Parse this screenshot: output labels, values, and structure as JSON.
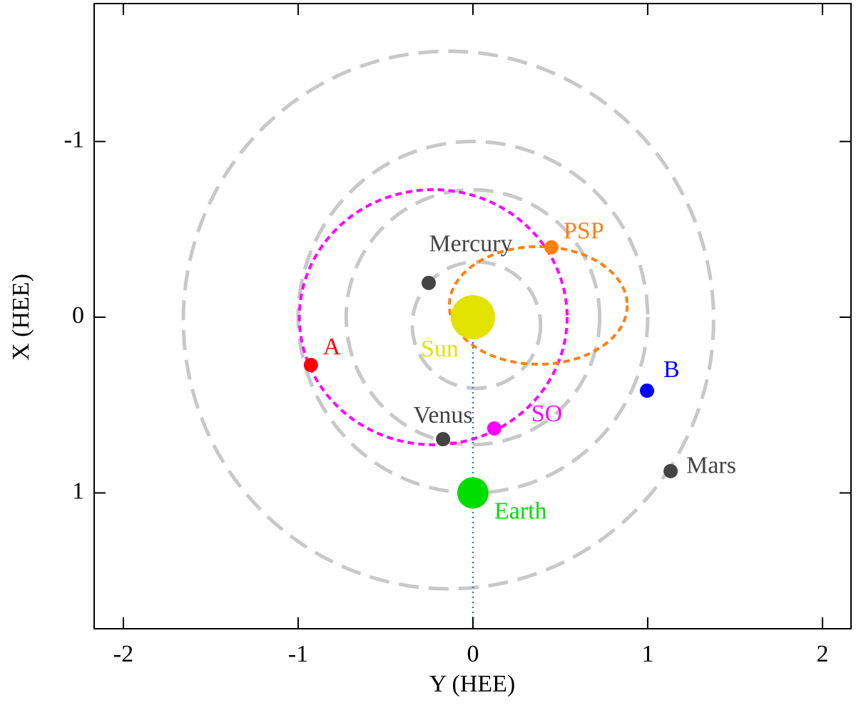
{
  "chart_data": {
    "type": "scatter",
    "xlabel": "Y (HEE)",
    "ylabel": "X (HEE)",
    "xlim": [
      -2.167,
      2.163
    ],
    "ylim": [
      -1.785,
      1.773
    ],
    "y_inverted": true,
    "xticks": [
      -2,
      -1,
      0,
      1,
      2
    ],
    "yticks": [
      -1,
      0,
      1
    ],
    "orbits": [
      {
        "color": "#c8c8c8",
        "style": "dashed",
        "cx": 0.02,
        "cy": 0.045,
        "rx": 0.367,
        "ry": 0.36
      },
      {
        "color": "#c8c8c8",
        "style": "dashed",
        "cx": 0,
        "cy": 0,
        "rx": 0.725,
        "ry": 0.725
      },
      {
        "color": "#c8c8c8",
        "style": "dashed",
        "cx": 0,
        "cy": 0,
        "rx": 1.0,
        "ry": 1.0
      },
      {
        "color": "#c8c8c8",
        "style": "dashed",
        "cx": -0.14,
        "cy": 0.016,
        "rx": 1.517,
        "ry": 1.53
      },
      {
        "color": "#ff00ff",
        "style": "dotted",
        "cx": -0.227,
        "cy": 0,
        "rx": 0.766,
        "ry": 0.726
      },
      {
        "color": "#ff8010",
        "style": "dotted",
        "cx": 0.374,
        "cy": -0.067,
        "rx": 0.509,
        "ry": 0.335
      }
    ],
    "bodies": [
      {
        "name": "Sun",
        "color": "#e3e300",
        "x": 0,
        "y": 0
      },
      {
        "name": "Mercury",
        "color": "#444444",
        "x": -0.253,
        "y": -0.195
      },
      {
        "name": "Venus",
        "color": "#444444",
        "x": -0.171,
        "y": 0.694
      },
      {
        "name": "Earth",
        "color": "#00dd00",
        "x": 0,
        "y": 1.0
      },
      {
        "name": "Mars",
        "color": "#444444",
        "x": 1.131,
        "y": 0.876
      },
      {
        "name": "PSP",
        "color": "#ff8010",
        "x": 0.449,
        "y": -0.398
      },
      {
        "name": "SO",
        "color": "#ff00ff",
        "x": 0.122,
        "y": 0.633
      },
      {
        "name": "A",
        "color": "#ff0000",
        "x": -0.927,
        "y": 0.272
      },
      {
        "name": "B",
        "color": "#0000ff",
        "x": 0.996,
        "y": 0.418
      }
    ],
    "sun_earth_line_color": "#3a78c0"
  }
}
